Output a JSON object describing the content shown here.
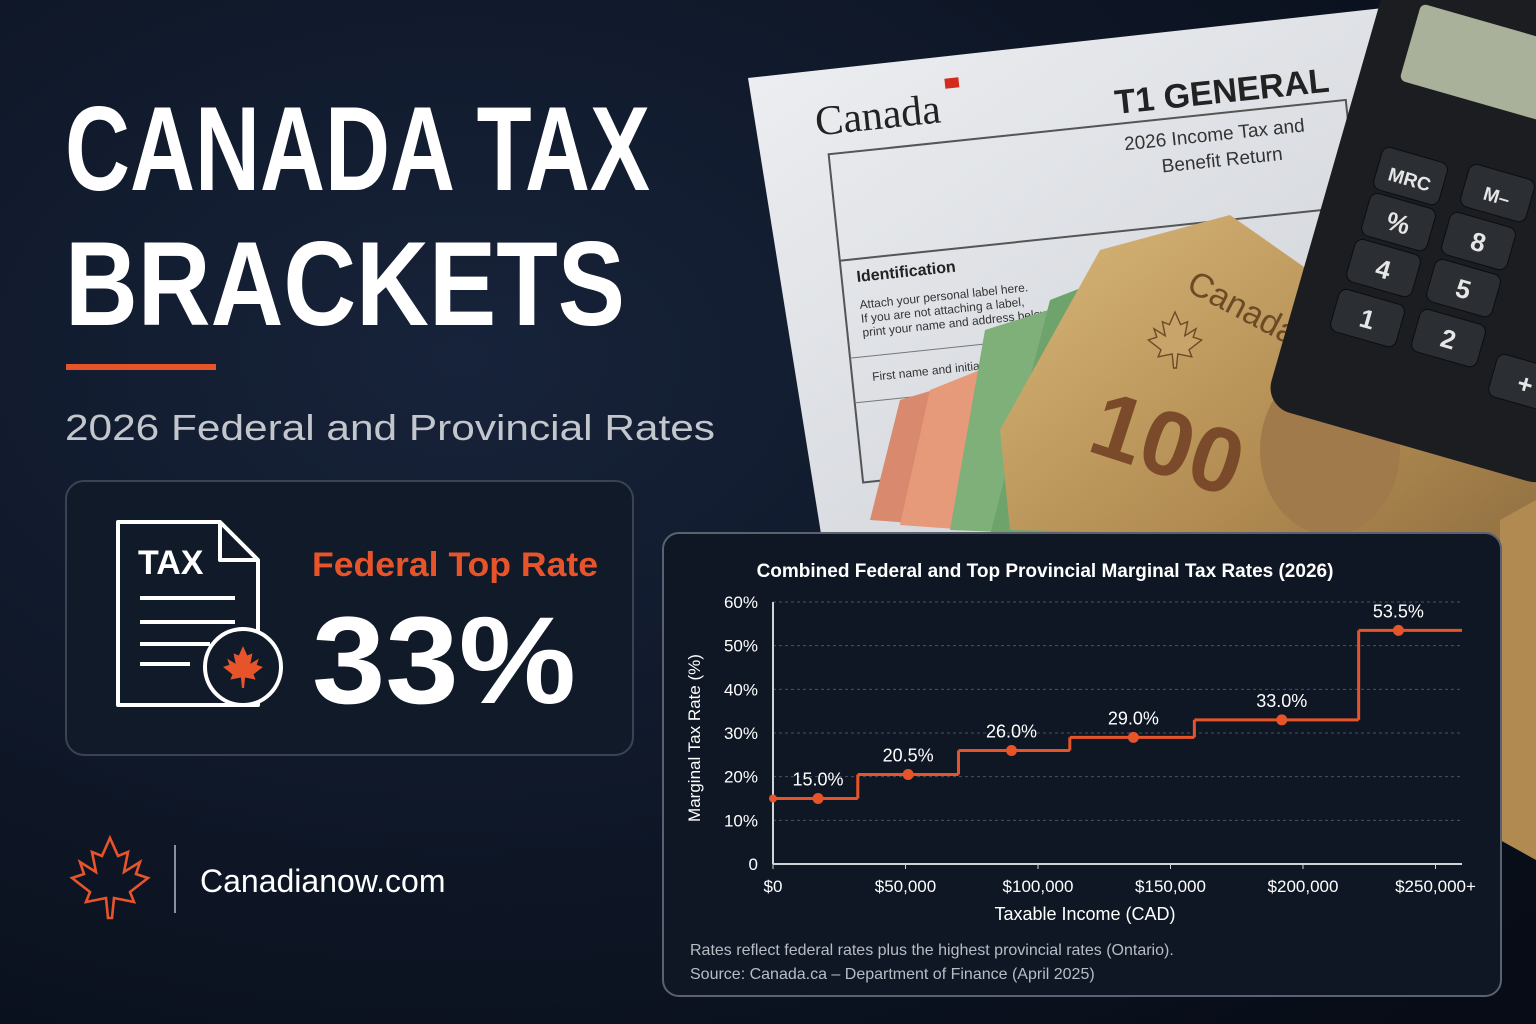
{
  "header": {
    "title_lines": [
      "CANADA TAX",
      "BRACKETS"
    ],
    "subtitle": "2026 Federal and Provincial Rates"
  },
  "highlight": {
    "icon_label": "TAX",
    "label": "Federal Top Rate",
    "value": "33%"
  },
  "brand": {
    "site": "Canadianow.com"
  },
  "photo": {
    "form": {
      "brand": "Canada",
      "title": "T1 GENERAL",
      "subtitle_lines": [
        "2026 Income Tax and",
        "Benefit Return"
      ],
      "section": "Identification",
      "instructions": [
        "Attach your personal label here.",
        "If you are not attaching a label,",
        "print your name and address below."
      ],
      "field": "First name and initial"
    },
    "calculator_keys": [
      "MRC",
      "M–",
      "%",
      "8",
      "4",
      "5",
      "1",
      "2",
      "+"
    ],
    "banknote": {
      "country": "Canada",
      "denomination": "100"
    }
  },
  "chart_data": {
    "type": "step",
    "title": "Combined Federal and Top Provincial Marginal Tax Rates (2026)",
    "x_label": "Taxable Income (CAD)",
    "y_label": "Marginal Tax Rate (%)",
    "xlim": [
      0,
      260000
    ],
    "xticks": [
      {
        "value": 0,
        "label": "$0"
      },
      {
        "value": 50000,
        "label": "$50,000"
      },
      {
        "value": 100000,
        "label": "$100,000"
      },
      {
        "value": 150000,
        "label": "$150,000"
      },
      {
        "value": 200000,
        "label": "$200,000"
      },
      {
        "value": 250000,
        "label": "$250,000+"
      }
    ],
    "ylim": [
      0,
      60
    ],
    "yticks": [
      0,
      {
        "value": 10,
        "label": "10%"
      },
      {
        "value": 20,
        "label": "20%"
      },
      {
        "value": 30,
        "label": "30%"
      },
      {
        "value": 40,
        "label": "40%"
      },
      {
        "value": 50,
        "label": "50%"
      },
      {
        "value": 60,
        "label": "60%"
      }
    ],
    "grid": true,
    "color": "#e8542a",
    "steps": {
      "x": [
        0,
        32000,
        70000,
        112000,
        159000,
        221000
      ],
      "values": [
        15,
        20.5,
        26,
        29,
        33,
        53.5
      ]
    },
    "points": {
      "x": [
        17000,
        51000,
        90000,
        136000,
        192000,
        236000
      ],
      "values": [
        15,
        20.5,
        26,
        29,
        33,
        53.5
      ],
      "value_labels": [
        "15.0%",
        "20.5%",
        "26.0%",
        "29.0%",
        "33.0%",
        "53.5%"
      ]
    },
    "notes": [
      "Rates reflect federal rates plus the highest provincial rates (Ontario).",
      "Source: Canada.ca – Department of Finance (April 2025)"
    ]
  }
}
